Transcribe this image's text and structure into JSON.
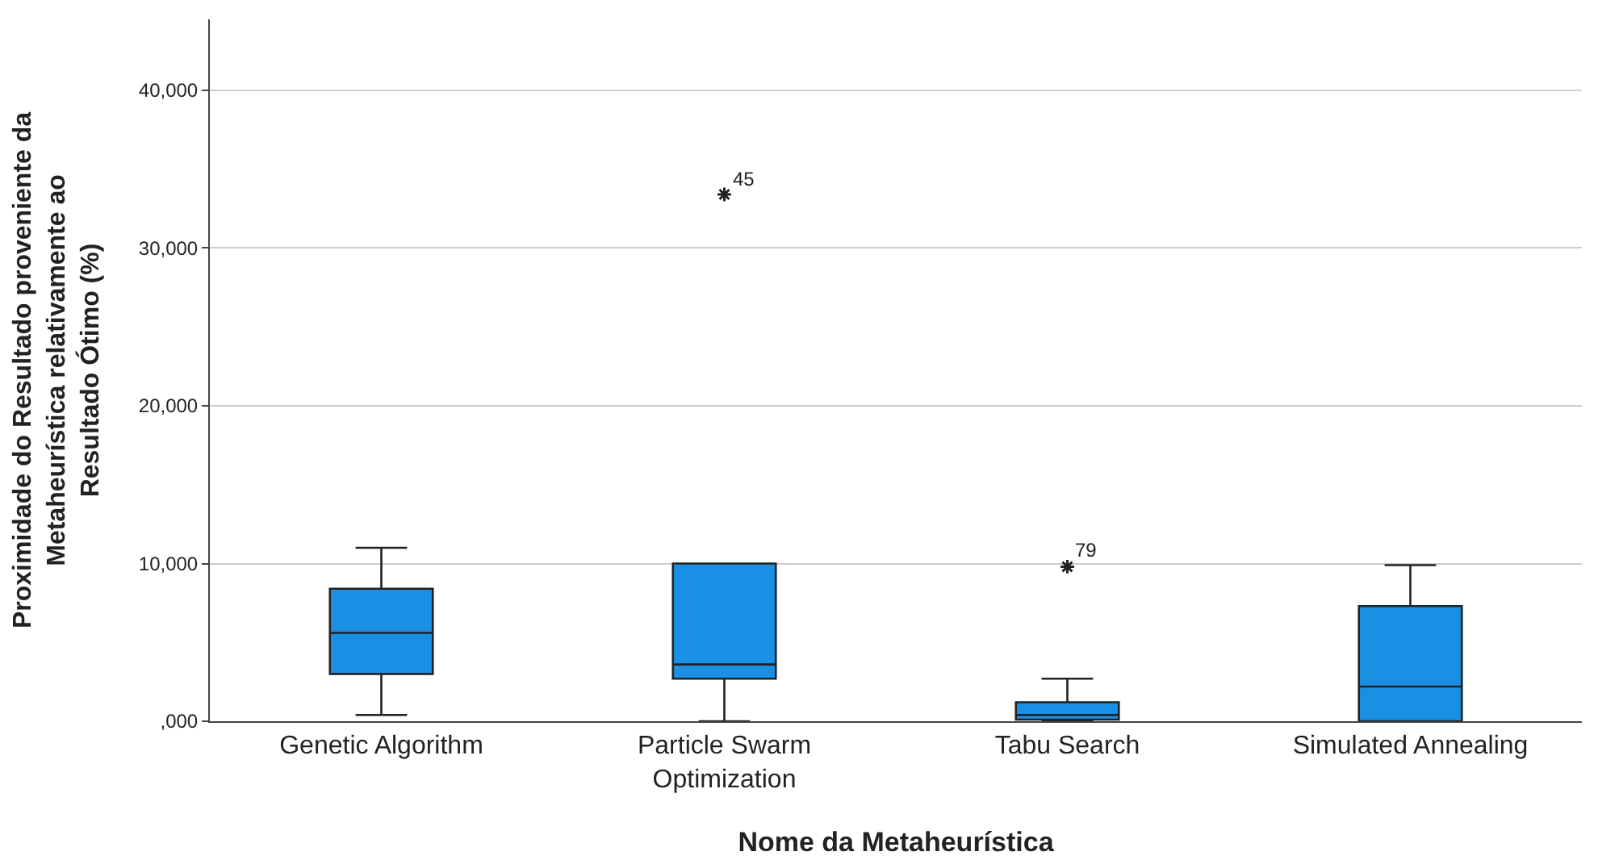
{
  "chart_data": {
    "type": "box",
    "xlabel": "Nome da Metaheurística",
    "ylabel": "Proximidade do Resultado proveniente da Metaheurística relativamente ao Resultado Ótimo (%)",
    "categories": [
      "Genetic Algorithm",
      "Particle Swarm Optimization",
      "Tabu Search",
      "Simulated Annealing"
    ],
    "color": "#1a8fe3",
    "marker": "star",
    "grid": "y",
    "ylim": [
      0,
      44500
    ],
    "yticks": [
      {
        "value": 0,
        "label": ",000"
      },
      {
        "value": 10000,
        "label": "10,000"
      },
      {
        "value": 20000,
        "label": "20,000"
      },
      {
        "value": 30000,
        "label": "30,000"
      },
      {
        "value": 40000,
        "label": "40,000"
      }
    ],
    "boxes": [
      {
        "low": 400,
        "q1": 3000,
        "median": 5600,
        "q3": 8400,
        "high": 11000
      },
      {
        "low": 0,
        "q1": 2700,
        "median": 3600,
        "q3": 10000,
        "high": 10000,
        "outliers": [
          33400
        ]
      },
      {
        "low": 0,
        "q1": 100,
        "median": 400,
        "q3": 1200,
        "high": 2700,
        "outliers": [
          9800
        ]
      },
      {
        "low": 0,
        "q1": 0,
        "median": 2200,
        "q3": 7300,
        "high": 9900
      }
    ],
    "annotations": [
      "45",
      "79"
    ]
  }
}
